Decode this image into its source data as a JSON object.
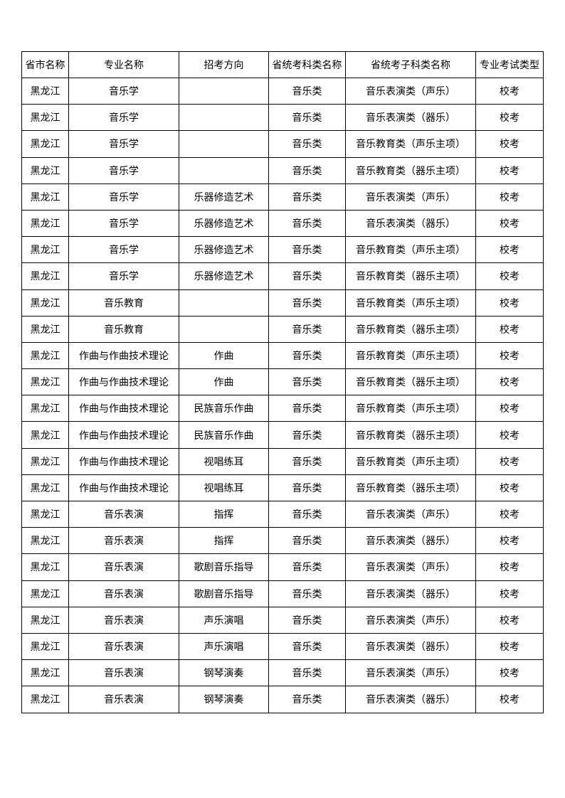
{
  "table": {
    "headers": [
      "省市名称",
      "专业名称",
      "招考方向",
      "省统考科类名称",
      "省统考子科类名称",
      "专业考试类型"
    ],
    "rows": [
      [
        "黑龙江",
        "音乐学",
        "",
        "音乐类",
        "音乐表演类（声乐）",
        "校考"
      ],
      [
        "黑龙江",
        "音乐学",
        "",
        "音乐类",
        "音乐表演类（器乐）",
        "校考"
      ],
      [
        "黑龙江",
        "音乐学",
        "",
        "音乐类",
        "音乐教育类（声乐主项）",
        "校考"
      ],
      [
        "黑龙江",
        "音乐学",
        "",
        "音乐类",
        "音乐教育类（器乐主项）",
        "校考"
      ],
      [
        "黑龙江",
        "音乐学",
        "乐器修造艺术",
        "音乐类",
        "音乐表演类（声乐）",
        "校考"
      ],
      [
        "黑龙江",
        "音乐学",
        "乐器修造艺术",
        "音乐类",
        "音乐表演类（器乐）",
        "校考"
      ],
      [
        "黑龙江",
        "音乐学",
        "乐器修造艺术",
        "音乐类",
        "音乐教育类（声乐主项）",
        "校考"
      ],
      [
        "黑龙江",
        "音乐学",
        "乐器修造艺术",
        "音乐类",
        "音乐教育类（器乐主项）",
        "校考"
      ],
      [
        "黑龙江",
        "音乐教育",
        "",
        "音乐类",
        "音乐教育类（声乐主项）",
        "校考"
      ],
      [
        "黑龙江",
        "音乐教育",
        "",
        "音乐类",
        "音乐教育类（器乐主项）",
        "校考"
      ],
      [
        "黑龙江",
        "作曲与作曲技术理论",
        "作曲",
        "音乐类",
        "音乐教育类（声乐主项）",
        "校考"
      ],
      [
        "黑龙江",
        "作曲与作曲技术理论",
        "作曲",
        "音乐类",
        "音乐教育类（器乐主项）",
        "校考"
      ],
      [
        "黑龙江",
        "作曲与作曲技术理论",
        "民族音乐作曲",
        "音乐类",
        "音乐教育类（声乐主项）",
        "校考"
      ],
      [
        "黑龙江",
        "作曲与作曲技术理论",
        "民族音乐作曲",
        "音乐类",
        "音乐教育类（器乐主项）",
        "校考"
      ],
      [
        "黑龙江",
        "作曲与作曲技术理论",
        "视唱练耳",
        "音乐类",
        "音乐教育类（声乐主项）",
        "校考"
      ],
      [
        "黑龙江",
        "作曲与作曲技术理论",
        "视唱练耳",
        "音乐类",
        "音乐教育类（器乐主项）",
        "校考"
      ],
      [
        "黑龙江",
        "音乐表演",
        "指挥",
        "音乐类",
        "音乐表演类（声乐）",
        "校考"
      ],
      [
        "黑龙江",
        "音乐表演",
        "指挥",
        "音乐类",
        "音乐表演类（器乐）",
        "校考"
      ],
      [
        "黑龙江",
        "音乐表演",
        "歌剧音乐指导",
        "音乐类",
        "音乐表演类（声乐）",
        "校考"
      ],
      [
        "黑龙江",
        "音乐表演",
        "歌剧音乐指导",
        "音乐类",
        "音乐表演类（器乐）",
        "校考"
      ],
      [
        "黑龙江",
        "音乐表演",
        "声乐演唱",
        "音乐类",
        "音乐表演类（声乐）",
        "校考"
      ],
      [
        "黑龙江",
        "音乐表演",
        "声乐演唱",
        "音乐类",
        "音乐表演类（器乐）",
        "校考"
      ],
      [
        "黑龙江",
        "音乐表演",
        "钢琴演奏",
        "音乐类",
        "音乐表演类（声乐）",
        "校考"
      ],
      [
        "黑龙江",
        "音乐表演",
        "钢琴演奏",
        "音乐类",
        "音乐表演类（器乐）",
        "校考"
      ]
    ]
  }
}
